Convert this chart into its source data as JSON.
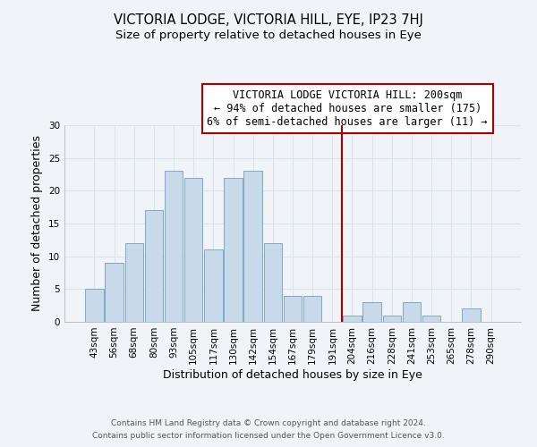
{
  "title": "VICTORIA LODGE, VICTORIA HILL, EYE, IP23 7HJ",
  "subtitle": "Size of property relative to detached houses in Eye",
  "xlabel": "Distribution of detached houses by size in Eye",
  "ylabel": "Number of detached properties",
  "categories": [
    "43sqm",
    "56sqm",
    "68sqm",
    "80sqm",
    "93sqm",
    "105sqm",
    "117sqm",
    "130sqm",
    "142sqm",
    "154sqm",
    "167sqm",
    "179sqm",
    "191sqm",
    "204sqm",
    "216sqm",
    "228sqm",
    "241sqm",
    "253sqm",
    "265sqm",
    "278sqm",
    "290sqm"
  ],
  "values": [
    5,
    9,
    12,
    17,
    23,
    22,
    11,
    22,
    23,
    12,
    4,
    4,
    0,
    1,
    3,
    1,
    3,
    1,
    0,
    2,
    0
  ],
  "bar_color": "#c8daea",
  "bar_edgecolor": "#7baac8",
  "vline_color": "#aa0000",
  "ylim": [
    0,
    30
  ],
  "yticks": [
    0,
    5,
    10,
    15,
    20,
    25,
    30
  ],
  "annotation_title": "VICTORIA LODGE VICTORIA HILL: 200sqm",
  "annotation_line1": "← 94% of detached houses are smaller (175)",
  "annotation_line2": "6% of semi-detached houses are larger (11) →",
  "footer1": "Contains HM Land Registry data © Crown copyright and database right 2024.",
  "footer2": "Contains public sector information licensed under the Open Government Licence v3.0.",
  "background_color": "#f0f4f8",
  "grid_color": "#d8e4f0",
  "title_fontsize": 10.5,
  "subtitle_fontsize": 9.5,
  "axis_label_fontsize": 9,
  "tick_fontsize": 7.5,
  "footer_fontsize": 6.5,
  "annotation_fontsize": 8.5
}
